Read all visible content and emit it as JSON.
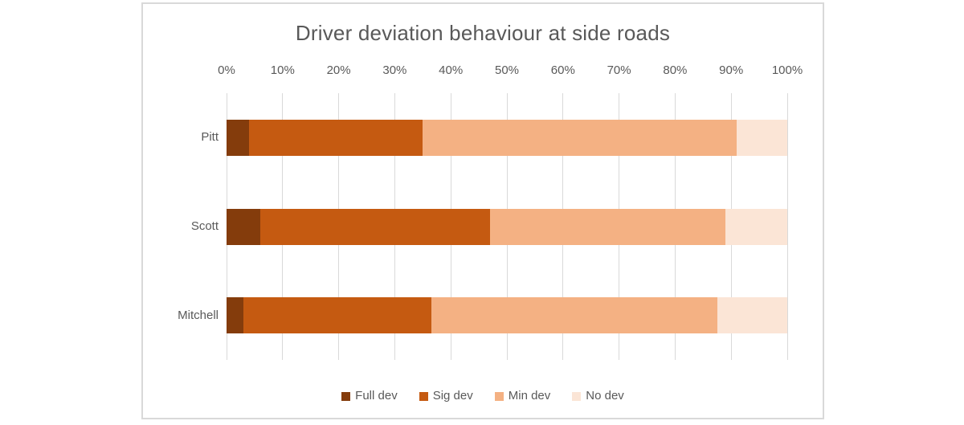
{
  "chart_data": {
    "type": "bar",
    "subtype": "stacked-100-horizontal",
    "title": "Driver deviation behaviour at side roads",
    "categories": [
      "Pitt",
      "Scott",
      "Mitchell"
    ],
    "series": [
      {
        "name": "Full dev",
        "color": "#843C0C",
        "values": [
          4,
          6,
          3
        ]
      },
      {
        "name": "Sig dev",
        "color": "#C55A11",
        "values": [
          31,
          41,
          33.5
        ]
      },
      {
        "name": "Min dev",
        "color": "#F4B183",
        "values": [
          56,
          42,
          51
        ]
      },
      {
        "name": "No dev",
        "color": "#FBE5D6",
        "values": [
          9,
          11,
          12.5
        ]
      }
    ],
    "value_axis": {
      "position": "top",
      "min": 0,
      "max": 100,
      "tick_labels": [
        "0%",
        "10%",
        "20%",
        "30%",
        "40%",
        "50%",
        "60%",
        "70%",
        "80%",
        "90%",
        "100%"
      ]
    },
    "legend": {
      "position": "bottom",
      "entries": [
        "Full dev",
        "Sig dev",
        "Min dev",
        "No dev"
      ]
    },
    "gridlines": {
      "vertical": true,
      "color": "#D9D9D9"
    },
    "text_color": "#595959",
    "chart_border_color": "#D9D9D9",
    "background": "#FFFFFF"
  }
}
